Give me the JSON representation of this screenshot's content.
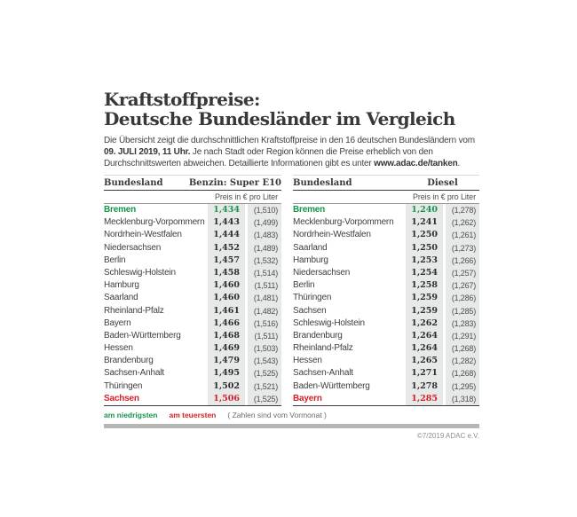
{
  "title": {
    "line1": "Kraftstoffpreise:",
    "line2": "Deutsche Bundesländer im Vergleich"
  },
  "intro": {
    "part1": "Die Übersicht zeigt die durchschnittlichen Kraftstoffpreise in den 16 deutschen Bundesländern vom ",
    "bold_date": "09. JULI 2019, 11 Uhr.",
    "part2": " Je nach Stadt oder Region können die Preise erheblich von den Durchschnittswerten abweichen. Detaillierte Informationen gibt es unter ",
    "bold_url": "www.adac.de/tanken",
    "part3": "."
  },
  "chart_data": [
    {
      "type": "table",
      "region_header": "Bundesland",
      "fuel_header": "Benzin: Super E10",
      "unit_label": "Preis in € pro Liter",
      "columns": [
        "Bundesland",
        "Preis",
        "Vormonat"
      ],
      "rows": [
        {
          "region": "Bremen",
          "price": "1,434",
          "previous": "(1,510)",
          "highlight": "lowest"
        },
        {
          "region": "Mecklenburg-Vorpommern",
          "price": "1,443",
          "previous": "(1,499)"
        },
        {
          "region": "Nordrhein-Westfalen",
          "price": "1,444",
          "previous": "(1,483)"
        },
        {
          "region": "Niedersachsen",
          "price": "1,452",
          "previous": "(1,489)"
        },
        {
          "region": "Berlin",
          "price": "1,457",
          "previous": "(1,532)"
        },
        {
          "region": "Schleswig-Holstein",
          "price": "1,458",
          "previous": "(1,514)"
        },
        {
          "region": "Hamburg",
          "price": "1,460",
          "previous": "(1,511)"
        },
        {
          "region": "Saarland",
          "price": "1,460",
          "previous": "(1,481)"
        },
        {
          "region": "Rheinland-Pfalz",
          "price": "1,461",
          "previous": "(1,482)"
        },
        {
          "region": "Bayern",
          "price": "1,466",
          "previous": "(1,516)"
        },
        {
          "region": "Baden-Württemberg",
          "price": "1,468",
          "previous": "(1,511)"
        },
        {
          "region": "Hessen",
          "price": "1,469",
          "previous": "(1,503)"
        },
        {
          "region": "Brandenburg",
          "price": "1,479",
          "previous": "(1,543)"
        },
        {
          "region": "Sachsen-Anhalt",
          "price": "1,495",
          "previous": "(1,525)"
        },
        {
          "region": "Thüringen",
          "price": "1,502",
          "previous": "(1,521)"
        },
        {
          "region": "Sachsen",
          "price": "1,506",
          "previous": "(1,525)",
          "highlight": "highest"
        }
      ]
    },
    {
      "type": "table",
      "region_header": "Bundesland",
      "fuel_header": "Diesel",
      "unit_label": "Preis in € pro Liter",
      "columns": [
        "Bundesland",
        "Preis",
        "Vormonat"
      ],
      "rows": [
        {
          "region": "Bremen",
          "price": "1,240",
          "previous": "(1,278)",
          "highlight": "lowest"
        },
        {
          "region": "Mecklenburg-Vorpommern",
          "price": "1,241",
          "previous": "(1,262)"
        },
        {
          "region": "Nordrhein-Westfalen",
          "price": "1,250",
          "previous": "(1,261)"
        },
        {
          "region": "Saarland",
          "price": "1,250",
          "previous": "(1,273)"
        },
        {
          "region": "Hamburg",
          "price": "1,253",
          "previous": "(1,266)"
        },
        {
          "region": "Niedersachsen",
          "price": "1,254",
          "previous": "(1,257)"
        },
        {
          "region": "Berlin",
          "price": "1,258",
          "previous": "(1,267)"
        },
        {
          "region": "Thüringen",
          "price": "1,259",
          "previous": "(1,286)"
        },
        {
          "region": "Sachsen",
          "price": "1,259",
          "previous": "(1,285)"
        },
        {
          "region": "Schleswig-Holstein",
          "price": "1,262",
          "previous": "(1,283)"
        },
        {
          "region": "Brandenburg",
          "price": "1,264",
          "previous": "(1,291)"
        },
        {
          "region": "Rheinland-Pfalz",
          "price": "1,264",
          "previous": "(1,268)"
        },
        {
          "region": "Hessen",
          "price": "1,265",
          "previous": "(1,282)"
        },
        {
          "region": "Sachsen-Anhalt",
          "price": "1,271",
          "previous": "(1,268)"
        },
        {
          "region": "Baden-Württemberg",
          "price": "1,278",
          "previous": "(1,295)"
        },
        {
          "region": "Bayern",
          "price": "1,285",
          "previous": "(1,318)",
          "highlight": "highest"
        }
      ]
    }
  ],
  "legend": {
    "lowest": "am niedrigsten",
    "highest": "am teuersten",
    "note": "( Zahlen sind vom Vormonat )"
  },
  "footer": {
    "copyright": "©7/2019 ADAC e.V."
  },
  "colors": {
    "lowest": "#14964a",
    "highest": "#d42027",
    "cell-bg": "#e7e9e8",
    "bar": "#b4b7b6"
  }
}
